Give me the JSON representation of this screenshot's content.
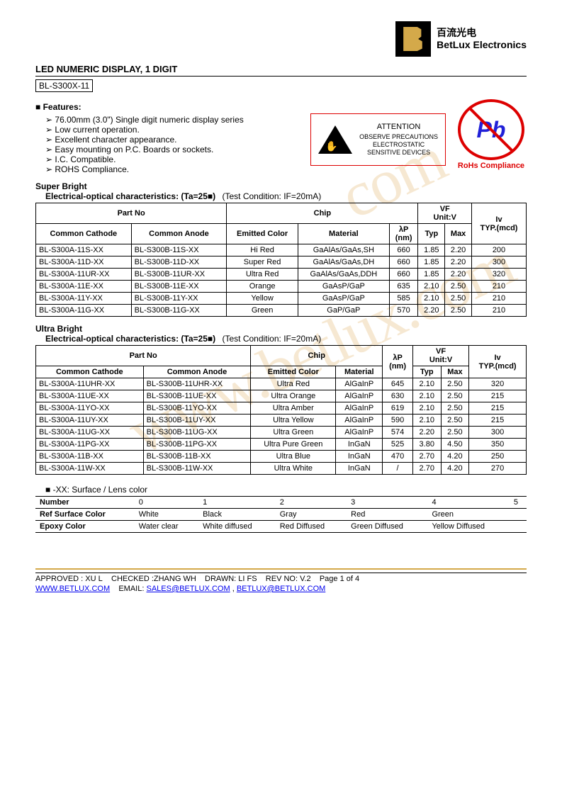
{
  "header": {
    "logo_cn": "百流光电",
    "logo_en": "BetLux Electronics"
  },
  "title": "LED NUMERIC DISPLAY, 1 DIGIT",
  "part_no": "BL-S300X-11",
  "features": {
    "heading": "Features:",
    "items": [
      "76.00mm (3.0\") Single digit numeric display series",
      "Low current operation.",
      "Excellent character appearance.",
      "Easy mounting on P.C. Boards or sockets.",
      "I.C. Compatible.",
      "ROHS Compliance."
    ]
  },
  "esd": {
    "top": "ATTENTION",
    "l1": "OBSERVE PRECAUTIONS",
    "l2": "ELECTROSTATIC",
    "l3": "SENSITIVE DEVICES"
  },
  "pb": {
    "symbol": "Pb",
    "label": "RoHs Compliance"
  },
  "super": {
    "title": "Super Bright",
    "sub": "Electrical-optical characteristics: (Ta=25■)",
    "cond": "(Test Condition: IF=20mA)",
    "h": {
      "partno": "Part No",
      "cc": "Common Cathode",
      "ca": "Common Anode",
      "chip": "Chip",
      "ecolor": "Emitted Color",
      "material": "Material",
      "lp": "λP",
      "lp_unit": "(nm)",
      "vf": "VF",
      "vf_unit": "Unit:V",
      "typ": "Typ",
      "max": "Max",
      "iv": "Iv",
      "iv_unit": "TYP.(mcd)"
    },
    "rows": [
      {
        "cc": "BL-S300A-11S-XX",
        "ca": "BL-S300B-11S-XX",
        "color": "Hi Red",
        "mat": "GaAlAs/GaAs,SH",
        "lp": "660",
        "typ": "1.85",
        "max": "2.20",
        "iv": "200"
      },
      {
        "cc": "BL-S300A-11D-XX",
        "ca": "BL-S300B-11D-XX",
        "color": "Super Red",
        "mat": "GaAlAs/GaAs,DH",
        "lp": "660",
        "typ": "1.85",
        "max": "2.20",
        "iv": "300"
      },
      {
        "cc": "BL-S300A-11UR-XX",
        "ca": "BL-S300B-11UR-XX",
        "color": "Ultra Red",
        "mat": "GaAlAs/GaAs,DDH",
        "lp": "660",
        "typ": "1.85",
        "max": "2.20",
        "iv": "320"
      },
      {
        "cc": "BL-S300A-11E-XX",
        "ca": "BL-S300B-11E-XX",
        "color": "Orange",
        "mat": "GaAsP/GaP",
        "lp": "635",
        "typ": "2.10",
        "max": "2.50",
        "iv": "210"
      },
      {
        "cc": "BL-S300A-11Y-XX",
        "ca": "BL-S300B-11Y-XX",
        "color": "Yellow",
        "mat": "GaAsP/GaP",
        "lp": "585",
        "typ": "2.10",
        "max": "2.50",
        "iv": "210"
      },
      {
        "cc": "BL-S300A-11G-XX",
        "ca": "BL-S300B-11G-XX",
        "color": "Green",
        "mat": "GaP/GaP",
        "lp": "570",
        "typ": "2.20",
        "max": "2.50",
        "iv": "210"
      }
    ]
  },
  "ultra": {
    "title": "Ultra Bright",
    "sub": "Electrical-optical characteristics: (Ta=25■)",
    "cond": "(Test Condition: IF=20mA)",
    "h": {
      "partno": "Part No",
      "cc": "Common Cathode",
      "ca": "Common Anode",
      "chip": "Chip",
      "ecolor": "Emitted Color",
      "material": "Material",
      "lp": "λP",
      "lp_unit": "(nm)",
      "vf": "VF",
      "vf_unit": "Unit:V",
      "typ": "Typ",
      "max": "Max",
      "iv": "Iv",
      "iv_unit": "TYP.(mcd)"
    },
    "rows": [
      {
        "cc": "BL-S300A-11UHR-XX",
        "ca": "BL-S300B-11UHR-XX",
        "color": "Ultra Red",
        "mat": "AlGaInP",
        "lp": "645",
        "typ": "2.10",
        "max": "2.50",
        "iv": "320"
      },
      {
        "cc": "BL-S300A-11UE-XX",
        "ca": "BL-S300B-11UE-XX",
        "color": "Ultra Orange",
        "mat": "AlGaInP",
        "lp": "630",
        "typ": "2.10",
        "max": "2.50",
        "iv": "215"
      },
      {
        "cc": "BL-S300A-11YO-XX",
        "ca": "BL-S300B-11YO-XX",
        "color": "Ultra Amber",
        "mat": "AlGaInP",
        "lp": "619",
        "typ": "2.10",
        "max": "2.50",
        "iv": "215"
      },
      {
        "cc": "BL-S300A-11UY-XX",
        "ca": "BL-S300B-11UY-XX",
        "color": "Ultra Yellow",
        "mat": "AlGaInP",
        "lp": "590",
        "typ": "2.10",
        "max": "2.50",
        "iv": "215"
      },
      {
        "cc": "BL-S300A-11UG-XX",
        "ca": "BL-S300B-11UG-XX",
        "color": "Ultra Green",
        "mat": "AlGaInP",
        "lp": "574",
        "typ": "2.20",
        "max": "2.50",
        "iv": "300"
      },
      {
        "cc": "BL-S300A-11PG-XX",
        "ca": "BL-S300B-11PG-XX",
        "color": "Ultra Pure Green",
        "mat": "InGaN",
        "lp": "525",
        "typ": "3.80",
        "max": "4.50",
        "iv": "350"
      },
      {
        "cc": "BL-S300A-11B-XX",
        "ca": "BL-S300B-11B-XX",
        "color": "Ultra Blue",
        "mat": "InGaN",
        "lp": "470",
        "typ": "2.70",
        "max": "4.20",
        "iv": "250"
      },
      {
        "cc": "BL-S300A-11W-XX",
        "ca": "BL-S300B-11W-XX",
        "color": "Ultra White",
        "mat": "InGaN",
        "lp": "/",
        "typ": "2.70",
        "max": "4.20",
        "iv": "270"
      }
    ]
  },
  "lens": {
    "note": "-XX: Surface / Lens color",
    "h": {
      "num": "Number",
      "ref": "Ref Surface Color",
      "epoxy": "Epoxy Color"
    },
    "cols": [
      "0",
      "1",
      "2",
      "3",
      "4",
      "5"
    ],
    "ref": [
      "White",
      "Black",
      "Gray",
      "Red",
      "Green",
      ""
    ],
    "epoxy": [
      "Water clear",
      "White diffused",
      "Red Diffused",
      "Green Diffused",
      "Yellow Diffused",
      ""
    ]
  },
  "footer": {
    "approved": "APPROVED : XU L",
    "checked": "CHECKED :ZHANG WH",
    "drawn": "DRAWN: LI FS",
    "rev": "REV NO: V.2",
    "page": "Page 1 of 4",
    "url": "WWW.BETLUX.COM",
    "email_label": "EMAIL:",
    "email1": "SALES@BETLUX.COM",
    "sep": ",",
    "email2": "BETLUX@BETLUX.COM"
  },
  "watermarks": {
    "w1": "www.betlux.com",
    "w2": "com"
  },
  "colors": {
    "brand_gold": "#d4a94a",
    "red": "#d00000",
    "blue": "#2121d8",
    "link": "#0000ee",
    "wm": "#e8c080"
  }
}
